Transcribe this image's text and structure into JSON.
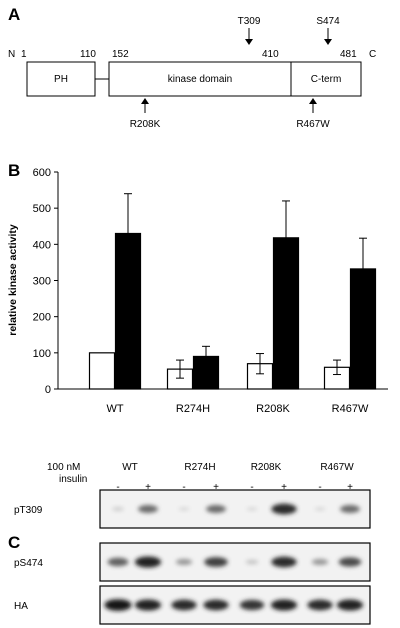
{
  "panel_a": {
    "label": "A",
    "n_label": "N",
    "c_label": "C",
    "positions": [
      "1",
      "110",
      "152",
      "410",
      "481"
    ],
    "domains": [
      "PH",
      "kinase domain",
      "C-term"
    ],
    "phospho_sites": [
      "T309",
      "S474"
    ],
    "mutations": [
      "R208K",
      "R467W"
    ]
  },
  "panel_b": {
    "label": "B",
    "chart_data": {
      "type": "bar",
      "categories": [
        "WT",
        "R274H",
        "R208K",
        "R467W"
      ],
      "series": [
        {
          "fill": "#ffffff",
          "values": [
            100,
            55,
            70,
            60
          ],
          "errors": [
            0,
            25,
            28,
            20
          ]
        },
        {
          "fill": "#000000",
          "values": [
            430,
            90,
            418,
            332
          ],
          "errors": [
            110,
            28,
            102,
            85
          ]
        }
      ],
      "ylabel": "relative kinase activity",
      "yticks": [
        "0",
        "100",
        "200",
        "300",
        "400",
        "500",
        "600"
      ],
      "ylim": [
        0,
        600
      ]
    }
  },
  "panel_c": {
    "label": "C",
    "treatment_line1": "100 nM",
    "treatment_line2": "insulin",
    "groups": [
      "WT",
      "R274H",
      "R208K",
      "R467W"
    ],
    "signs": [
      "-",
      "+",
      "-",
      "+",
      "-",
      "+",
      "-",
      "+"
    ],
    "blots": [
      {
        "label": "pT309",
        "intensity": [
          0.1,
          0.55,
          0.05,
          0.55,
          0.05,
          0.85,
          0.05,
          0.55
        ]
      },
      {
        "label": "pS474",
        "intensity": [
          0.6,
          0.9,
          0.35,
          0.75,
          0.15,
          0.85,
          0.35,
          0.7
        ]
      },
      {
        "label": "HA",
        "intensity": [
          0.95,
          0.9,
          0.85,
          0.85,
          0.8,
          0.9,
          0.85,
          0.9
        ]
      }
    ]
  }
}
